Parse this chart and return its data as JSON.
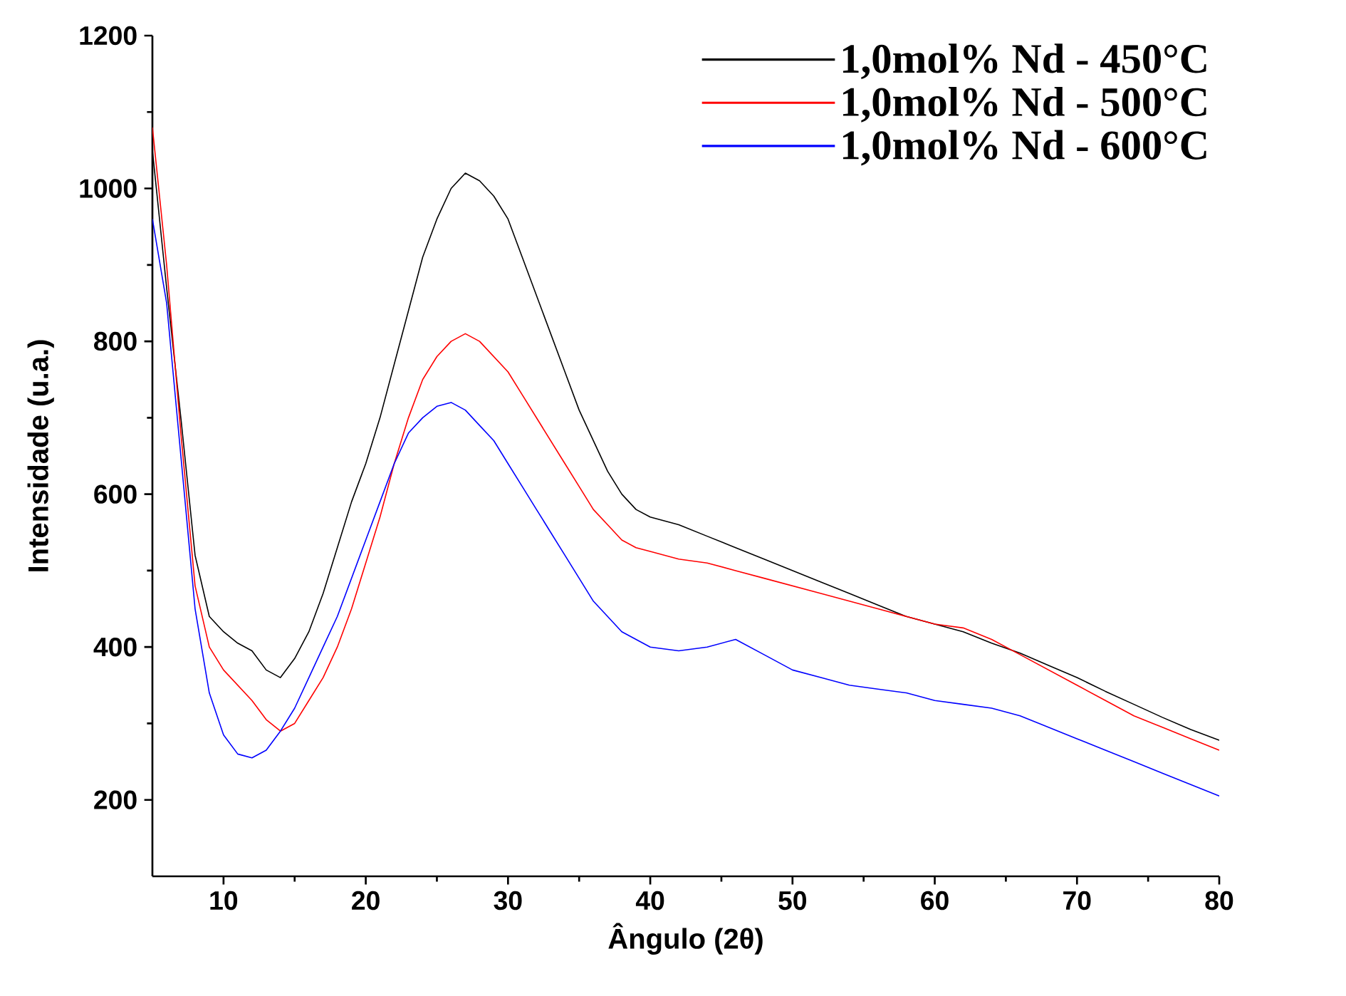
{
  "chart_data": {
    "type": "line",
    "xlabel": "Ângulo (2θ)",
    "ylabel": "Intensidade (u.a.)",
    "x": [
      5,
      6,
      7,
      8,
      9,
      10,
      11,
      12,
      13,
      14,
      15,
      16,
      17,
      18,
      19,
      20,
      21,
      22,
      23,
      24,
      25,
      26,
      27,
      28,
      29,
      30,
      31,
      32,
      33,
      34,
      35,
      36,
      37,
      38,
      39,
      40,
      42,
      44,
      46,
      48,
      50,
      52,
      54,
      56,
      58,
      60,
      62,
      64,
      66,
      68,
      70,
      72,
      74,
      76,
      78,
      80
    ],
    "series": [
      {
        "name": "1,0mol% Nd - 450°C",
        "color": "#000000",
        "values": [
          1050,
          870,
          700,
          520,
          440,
          420,
          405,
          395,
          370,
          360,
          385,
          420,
          470,
          530,
          590,
          640,
          700,
          770,
          840,
          910,
          960,
          1000,
          1020,
          1010,
          990,
          960,
          910,
          860,
          810,
          760,
          710,
          670,
          630,
          600,
          580,
          570,
          560,
          545,
          530,
          515,
          500,
          485,
          470,
          455,
          440,
          430,
          420,
          405,
          392,
          376,
          360,
          342,
          325,
          308,
          292,
          278
        ]
      },
      {
        "name": "1,0mol% Nd - 500°C",
        "color": "#ff0000",
        "values": [
          1080,
          900,
          680,
          480,
          400,
          370,
          350,
          330,
          305,
          290,
          300,
          330,
          360,
          400,
          450,
          510,
          570,
          640,
          700,
          750,
          780,
          800,
          810,
          800,
          780,
          760,
          730,
          700,
          670,
          640,
          610,
          580,
          560,
          540,
          530,
          525,
          515,
          510,
          500,
          490,
          480,
          470,
          460,
          450,
          440,
          430,
          425,
          410,
          390,
          370,
          350,
          330,
          310,
          295,
          280,
          265
        ]
      },
      {
        "name": "1,0mol% Nd - 600°C",
        "color": "#0000ff",
        "values": [
          960,
          850,
          650,
          450,
          340,
          285,
          260,
          255,
          265,
          290,
          320,
          360,
          400,
          440,
          490,
          540,
          590,
          640,
          680,
          700,
          715,
          720,
          710,
          690,
          670,
          640,
          610,
          580,
          550,
          520,
          490,
          460,
          440,
          420,
          410,
          400,
          395,
          400,
          410,
          390,
          370,
          360,
          350,
          345,
          340,
          330,
          325,
          320,
          310,
          295,
          280,
          265,
          250,
          235,
          220,
          205
        ]
      }
    ],
    "xlim": [
      5,
      80
    ],
    "ylim": [
      100,
      1200
    ],
    "xticks": [
      10,
      20,
      30,
      40,
      50,
      60,
      70,
      80
    ],
    "yticks": [
      200,
      400,
      600,
      800,
      1000,
      1200
    ],
    "legend": "top right",
    "grid": false,
    "marker": "none",
    "line_style": "solid"
  }
}
